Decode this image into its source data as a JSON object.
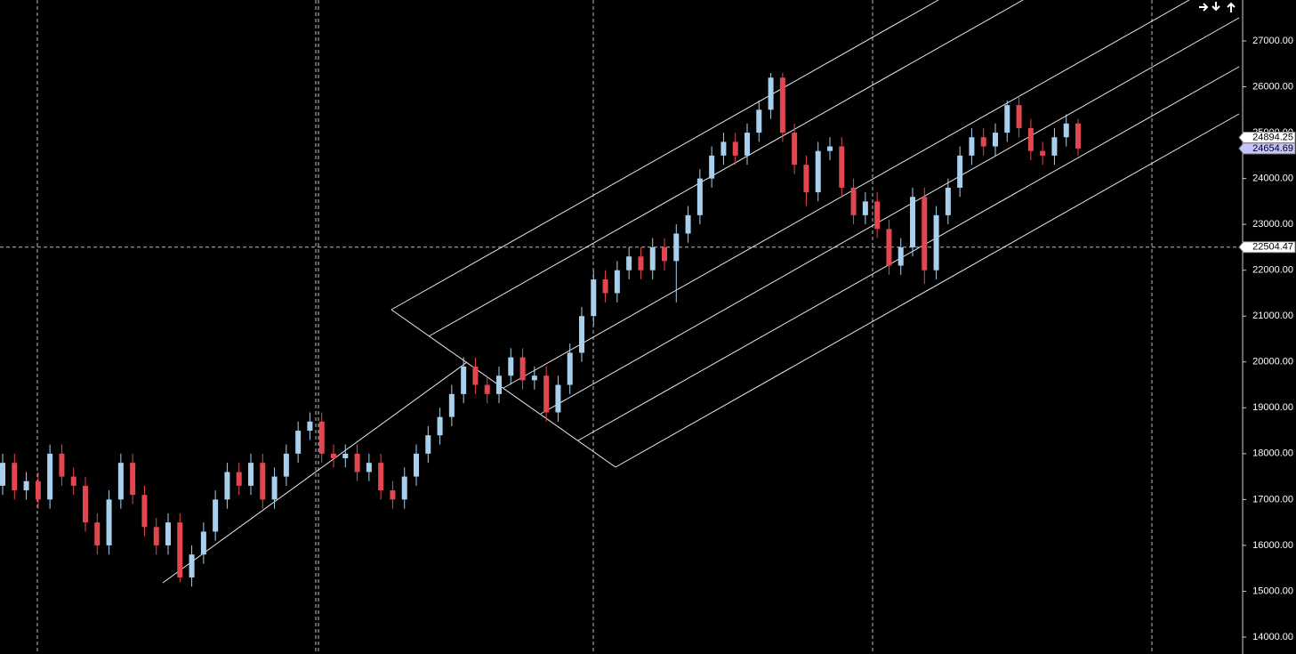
{
  "chart_data": {
    "type": "candlestick",
    "open": [
      17300,
      17800,
      17200,
      17400,
      17000,
      18000,
      17500,
      17300,
      16500,
      16000,
      17000,
      17800,
      17100,
      16400,
      16000,
      16500,
      15300,
      15800,
      16300,
      17000,
      17600,
      17300,
      17800,
      17000,
      17500,
      18000,
      18500,
      18700,
      18000,
      17900,
      18000,
      17600,
      17800,
      17200,
      17000,
      17500,
      18000,
      18400,
      18800,
      19300,
      19900,
      19500,
      19300,
      19700,
      20100,
      19600,
      19700,
      18900,
      19500,
      20200,
      21000,
      21800,
      21500,
      22000,
      22300,
      22000,
      22500,
      22200,
      22800,
      23200,
      24000,
      24500,
      24800,
      24500,
      25000,
      25500,
      26200,
      25000,
      24300,
      23700,
      24600,
      24700,
      23800,
      23200,
      23500,
      22900,
      22100,
      22500,
      23600,
      22000,
      23200,
      23800,
      24500,
      24900,
      24700,
      25000,
      25600,
      25100,
      24600,
      24500,
      24900,
      25200
    ],
    "high": [
      18000,
      18000,
      17600,
      17600,
      18200,
      18200,
      17700,
      17500,
      16700,
      17200,
      18000,
      18000,
      17300,
      16600,
      16700,
      16700,
      16000,
      16500,
      17200,
      17800,
      17800,
      18000,
      18000,
      17700,
      18200,
      18700,
      18900,
      18900,
      18200,
      18200,
      18200,
      18000,
      18000,
      17400,
      17700,
      18200,
      18600,
      19000,
      19500,
      20100,
      20100,
      19700,
      19900,
      20300,
      20300,
      19900,
      19900,
      19700,
      20400,
      21200,
      22000,
      22000,
      22200,
      22500,
      22500,
      22700,
      22700,
      23000,
      23400,
      24200,
      24700,
      25000,
      25000,
      25200,
      25700,
      26300,
      26300,
      25200,
      24500,
      24800,
      24900,
      24900,
      24000,
      23700,
      23700,
      23100,
      22700,
      23800,
      23800,
      23400,
      24000,
      24700,
      25100,
      25100,
      25200,
      25700,
      25800,
      25300,
      24800,
      25100,
      25400,
      25300
    ],
    "low": [
      17100,
      17000,
      17000,
      16800,
      16800,
      17300,
      17100,
      16300,
      15800,
      15800,
      16800,
      16900,
      16200,
      15800,
      15800,
      15200,
      15100,
      15600,
      16100,
      16800,
      17100,
      17100,
      16800,
      16800,
      17300,
      17800,
      18300,
      17800,
      17700,
      17700,
      17400,
      17400,
      17000,
      16800,
      16800,
      17300,
      17800,
      18200,
      18600,
      19100,
      19300,
      19100,
      19100,
      19500,
      19400,
      19400,
      18700,
      18700,
      19300,
      20000,
      20800,
      21300,
      21300,
      21800,
      21800,
      21800,
      22000,
      21300,
      22600,
      23000,
      23800,
      24300,
      24300,
      24300,
      24800,
      25300,
      24800,
      24100,
      23400,
      23500,
      24400,
      23600,
      23000,
      23000,
      22700,
      21900,
      21900,
      22300,
      21700,
      21800,
      23000,
      23600,
      24300,
      24500,
      24500,
      24800,
      24900,
      24400,
      24300,
      24300,
      24700,
      24500
    ],
    "close": [
      17800,
      17200,
      17400,
      17000,
      18000,
      17500,
      17300,
      16500,
      16000,
      17000,
      17800,
      17100,
      16400,
      16000,
      16500,
      15300,
      15800,
      16300,
      17000,
      17600,
      17300,
      17800,
      17000,
      17500,
      18000,
      18500,
      18700,
      18000,
      17900,
      18000,
      17600,
      17800,
      17200,
      17000,
      17500,
      18000,
      18400,
      18800,
      19300,
      19900,
      19500,
      19300,
      19700,
      20100,
      19600,
      19700,
      18900,
      19500,
      20200,
      21000,
      21800,
      21500,
      22000,
      22300,
      22000,
      22500,
      22200,
      22800,
      23200,
      24000,
      24500,
      24800,
      24500,
      25000,
      25500,
      26200,
      25000,
      24300,
      23700,
      24600,
      24700,
      23800,
      23200,
      23500,
      22900,
      22100,
      22500,
      23600,
      22000,
      23200,
      23800,
      24500,
      24900,
      24700,
      25000,
      25600,
      25100,
      24600,
      24500,
      24900,
      25200,
      24654.69
    ],
    "up_color": "#a8d0ec",
    "down_color": "#e2474f",
    "ylim": [
      13631,
      27893
    ],
    "yticks": [
      {
        "value": 14000,
        "label": "14000.00"
      },
      {
        "value": 15000,
        "label": "15000.00"
      },
      {
        "value": 16000,
        "label": "16000.00"
      },
      {
        "value": 17000,
        "label": "17000.00"
      },
      {
        "value": 18000,
        "label": "18000.00"
      },
      {
        "value": 19000,
        "label": "19000.00"
      },
      {
        "value": 20000,
        "label": "20000.00"
      },
      {
        "value": 21000,
        "label": "21000.00"
      },
      {
        "value": 22000,
        "label": "22000.00"
      },
      {
        "value": 23000,
        "label": "23000.00"
      },
      {
        "value": 24000,
        "label": "24000.00"
      },
      {
        "value": 25000,
        "label": "25000.00"
      },
      {
        "value": 26000,
        "label": "26000.00"
      },
      {
        "value": 27000,
        "label": "27000.00"
      }
    ],
    "ask_price": 24894.25,
    "bid_price": 24654.69,
    "crosshair_price": 22504.47
  }
}
